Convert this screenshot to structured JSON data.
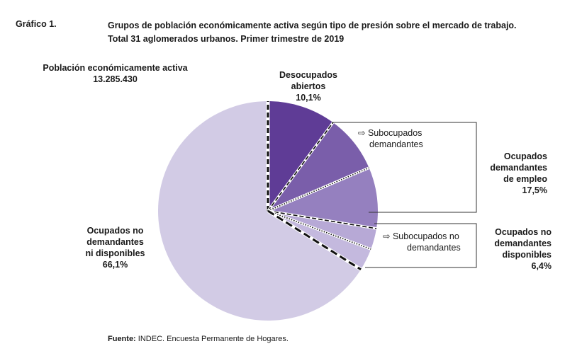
{
  "figure_label": "Gráfico 1.",
  "title_line1": "Grupos de población económicamente activa según tipo de presión sobre el mercado de trabajo.",
  "title_line2": "Total 31 aglomerados urbanos. Primer trimestre de 2019",
  "total_label": "Población económicamente activa",
  "total_value": "13.285.430",
  "labels": {
    "desocupados_l1": "Desocupados",
    "desocupados_l2": "abiertos",
    "desocupados_pct": "10,1%",
    "subocupados_dem_l1": "Subocupados",
    "subocupados_dem_l2": "demandantes",
    "ocupados_dem_l1": "Ocupados",
    "ocupados_dem_l2": "demandantes",
    "ocupados_dem_l3": "de empleo",
    "ocupados_dem_pct": "17,5%",
    "subocupados_nodem_l1": "Subocupados no",
    "subocupados_nodem_l2": "demandantes",
    "ocupados_disp_l1": "Ocupados no",
    "ocupados_disp_l2": "demandantes",
    "ocupados_disp_l3": "disponibles",
    "ocupados_disp_pct": "6,4%",
    "ocupados_nodisp_l1": "Ocupados no",
    "ocupados_nodisp_l2": "demandantes",
    "ocupados_nodisp_l3": "ni disponibles",
    "ocupados_nodisp_pct": "66,1%"
  },
  "source_label": "Fuente:",
  "source_text": "INDEC. Encuesta Permanente de Hogares.",
  "chart_data": {
    "type": "pie",
    "slices": [
      {
        "label": "Desocupados abiertos",
        "value": 10.1,
        "color": "#5f3c96"
      },
      {
        "label": "Subocupados demandantes",
        "value": 8.5,
        "color": "#7a5eaa"
      },
      {
        "label": "Ocupados demandantes de empleo (otros)",
        "value": 9.0,
        "color": "#9580bf"
      },
      {
        "label": "Subocupados no demandantes",
        "value": 3.1,
        "color": "#b7a9d6"
      },
      {
        "label": "Ocupados no demandantes disponibles (otros)",
        "value": 3.3,
        "color": "#c4b9de"
      },
      {
        "label": "Ocupados no demandantes ni disponibles",
        "value": 66.1,
        "color": "#d2cbe5"
      }
    ],
    "groups": [
      {
        "label": "Ocupados demandantes de empleo",
        "value": 17.5
      },
      {
        "label": "Ocupados no demandantes disponibles",
        "value": 6.4
      }
    ],
    "start_angle_deg": 0,
    "direction": "clockwise"
  }
}
